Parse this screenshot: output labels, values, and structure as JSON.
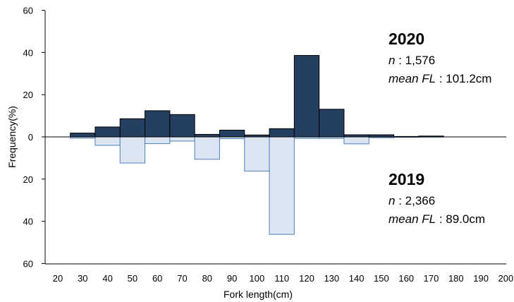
{
  "chart_data": {
    "type": "bar",
    "subtype": "mirrored-histogram",
    "xlabel": "Fork length(cm)",
    "ylabel": "Frequency(%)",
    "x_ticks": [
      "20",
      "30",
      "40",
      "50",
      "60",
      "70",
      "80",
      "90",
      "100",
      "110",
      "120",
      "130",
      "140",
      "150",
      "160",
      "170",
      "180",
      "190",
      "200"
    ],
    "y_ticks": [
      {
        "value": 60,
        "label": "60",
        "color": "#000000"
      },
      {
        "value": 40,
        "label": "40",
        "color": "#000000"
      },
      {
        "value": 20,
        "label": "20",
        "color": "#000000"
      },
      {
        "value": 0,
        "label": "0",
        "color": "#000000"
      },
      {
        "value": -20,
        "label": "20",
        "color": "#e00000"
      },
      {
        "value": -40,
        "label": "40",
        "color": "#e00000"
      },
      {
        "value": -60,
        "label": "60",
        "color": "#e00000"
      }
    ],
    "ylim": [
      -60,
      60
    ],
    "xlim": [
      15,
      205
    ],
    "bin_width": 10,
    "bin_centers": [
      30,
      40,
      50,
      60,
      70,
      80,
      90,
      100,
      110,
      120,
      130,
      140,
      150,
      160,
      170
    ],
    "grid": false,
    "series": [
      {
        "year": "2020",
        "direction": "up",
        "fill": "#243f60",
        "stroke": "#000000",
        "values": [
          1.8,
          4.7,
          8.6,
          12.4,
          10.6,
          1.2,
          3.2,
          0.9,
          3.9,
          38.6,
          13.1,
          1.0,
          1.0,
          0.2,
          0.4
        ]
      },
      {
        "year": "2019",
        "direction": "down",
        "fill": "#dce6f2",
        "stroke": "#4f81bd",
        "values": [
          0.6,
          4.0,
          12.4,
          3.2,
          2.0,
          10.6,
          0.8,
          16.2,
          46.2,
          0.7,
          0.7,
          3.3,
          0.4,
          0.2,
          0.1
        ]
      }
    ],
    "annotations": [
      {
        "year": "2020",
        "n_label": "n",
        "n_value": " : 1,576",
        "mean_label": "mean FL",
        "mean_value": " : 101.2cm"
      },
      {
        "year": "2019",
        "n_label": "n",
        "n_value": " : 2,366",
        "mean_label": "mean FL",
        "mean_value": " : 89.0cm"
      }
    ]
  }
}
